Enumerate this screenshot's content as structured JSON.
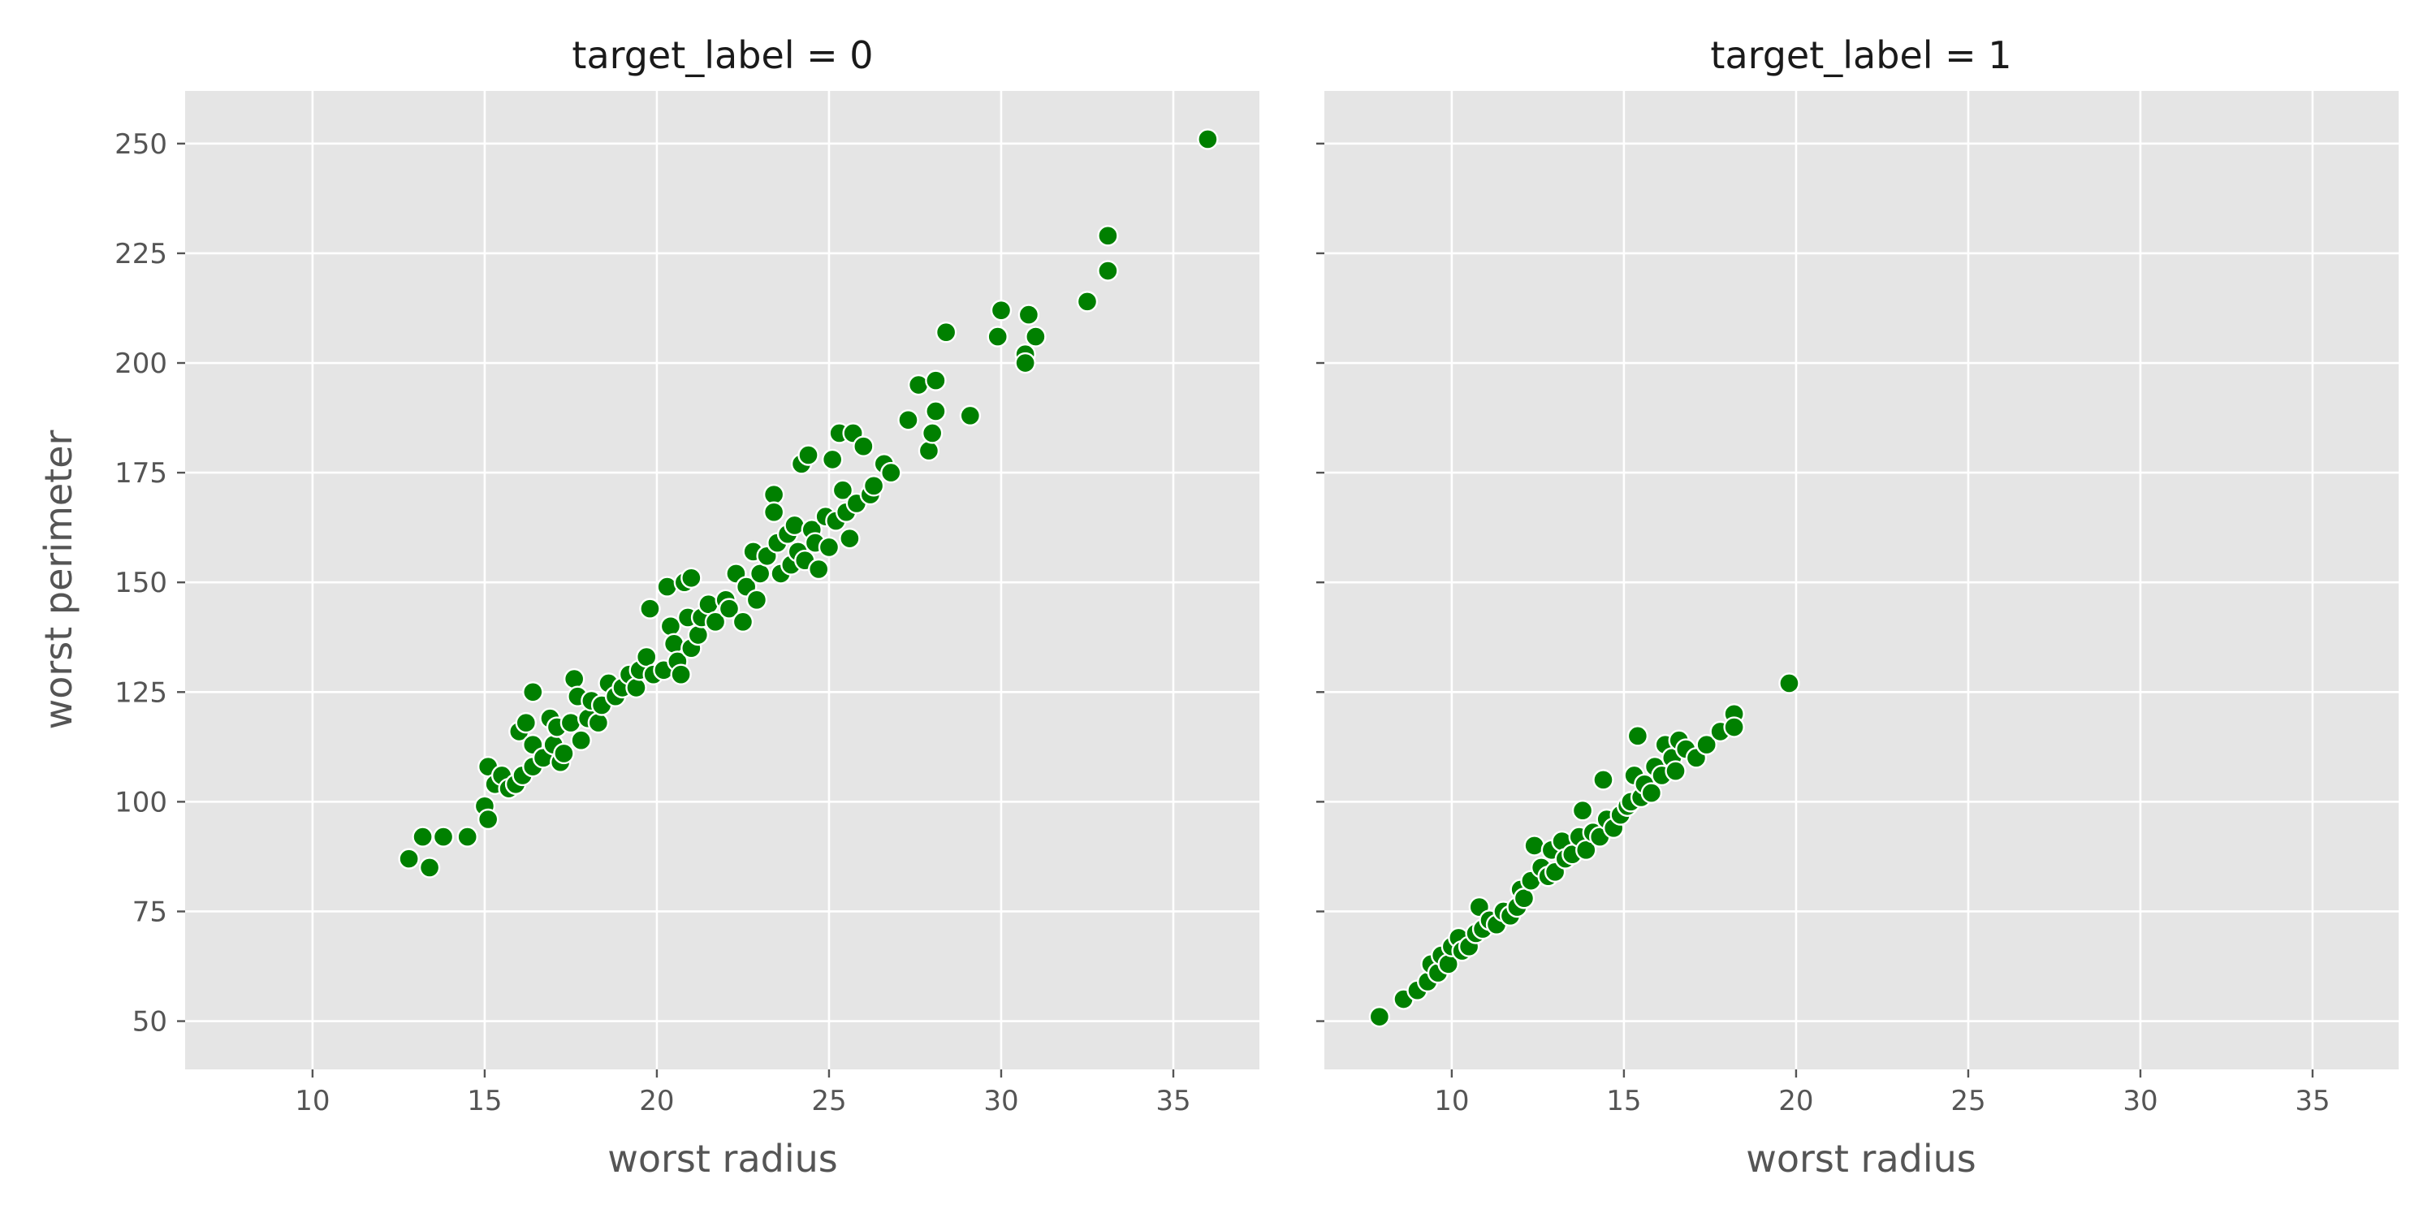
{
  "chart_data": {
    "type": "scatter",
    "point_color": "#008000",
    "background_color": "#e5e5e5",
    "grid": true,
    "shared_y_axis": true,
    "xlabel": "worst radius",
    "ylabel": "worst perimeter",
    "xlim": [
      6.3,
      37.5
    ],
    "ylim": [
      39,
      262
    ],
    "xticks": [
      10,
      15,
      20,
      25,
      30,
      35
    ],
    "yticks": [
      50,
      75,
      100,
      125,
      150,
      175,
      200,
      225,
      250
    ],
    "panels": [
      {
        "title": "target_label = 0",
        "points": [
          [
            12.8,
            87
          ],
          [
            13.2,
            92
          ],
          [
            13.4,
            85
          ],
          [
            13.8,
            92
          ],
          [
            14.5,
            92
          ],
          [
            15.0,
            99
          ],
          [
            15.1,
            96
          ],
          [
            15.1,
            108
          ],
          [
            15.3,
            104
          ],
          [
            15.5,
            106
          ],
          [
            15.7,
            103
          ],
          [
            15.9,
            104
          ],
          [
            16.0,
            116
          ],
          [
            16.2,
            118
          ],
          [
            16.1,
            106
          ],
          [
            16.4,
            125
          ],
          [
            16.4,
            113
          ],
          [
            16.4,
            108
          ],
          [
            16.7,
            110
          ],
          [
            16.9,
            119
          ],
          [
            17.0,
            113
          ],
          [
            17.1,
            117
          ],
          [
            17.2,
            109
          ],
          [
            17.3,
            111
          ],
          [
            17.5,
            118
          ],
          [
            17.6,
            128
          ],
          [
            17.7,
            124
          ],
          [
            17.8,
            114
          ],
          [
            18.0,
            119
          ],
          [
            18.1,
            123
          ],
          [
            18.3,
            118
          ],
          [
            18.4,
            122
          ],
          [
            18.6,
            127
          ],
          [
            18.8,
            124
          ],
          [
            19.0,
            126
          ],
          [
            19.2,
            129
          ],
          [
            19.4,
            126
          ],
          [
            19.5,
            130
          ],
          [
            19.7,
            133
          ],
          [
            19.8,
            144
          ],
          [
            19.9,
            129
          ],
          [
            20.2,
            130
          ],
          [
            20.3,
            149
          ],
          [
            20.4,
            140
          ],
          [
            20.5,
            136
          ],
          [
            20.6,
            132
          ],
          [
            20.7,
            129
          ],
          [
            20.8,
            150
          ],
          [
            20.9,
            142
          ],
          [
            21.0,
            151
          ],
          [
            21.0,
            135
          ],
          [
            21.2,
            138
          ],
          [
            21.3,
            142
          ],
          [
            21.5,
            145
          ],
          [
            21.7,
            141
          ],
          [
            22.0,
            146
          ],
          [
            22.1,
            144
          ],
          [
            22.3,
            152
          ],
          [
            22.5,
            141
          ],
          [
            22.6,
            149
          ],
          [
            22.8,
            157
          ],
          [
            22.9,
            146
          ],
          [
            23.0,
            152
          ],
          [
            23.2,
            156
          ],
          [
            23.4,
            170
          ],
          [
            23.4,
            166
          ],
          [
            23.5,
            159
          ],
          [
            23.6,
            152
          ],
          [
            23.8,
            161
          ],
          [
            23.9,
            154
          ],
          [
            24.0,
            163
          ],
          [
            24.1,
            157
          ],
          [
            24.2,
            177
          ],
          [
            24.3,
            155
          ],
          [
            24.4,
            179
          ],
          [
            24.5,
            162
          ],
          [
            24.6,
            159
          ],
          [
            24.7,
            153
          ],
          [
            24.9,
            165
          ],
          [
            25.0,
            158
          ],
          [
            25.1,
            178
          ],
          [
            25.2,
            164
          ],
          [
            25.3,
            184
          ],
          [
            25.4,
            171
          ],
          [
            25.5,
            166
          ],
          [
            25.6,
            160
          ],
          [
            25.7,
            184
          ],
          [
            25.8,
            168
          ],
          [
            26.0,
            181
          ],
          [
            26.2,
            170
          ],
          [
            26.3,
            172
          ],
          [
            26.6,
            177
          ],
          [
            26.8,
            175
          ],
          [
            27.3,
            187
          ],
          [
            27.6,
            195
          ],
          [
            27.9,
            180
          ],
          [
            28.0,
            184
          ],
          [
            28.1,
            189
          ],
          [
            28.1,
            196
          ],
          [
            28.4,
            207
          ],
          [
            29.1,
            188
          ],
          [
            29.9,
            206
          ],
          [
            30.0,
            212
          ],
          [
            30.7,
            202
          ],
          [
            30.7,
            200
          ],
          [
            30.8,
            211
          ],
          [
            31.0,
            206
          ],
          [
            32.5,
            214
          ],
          [
            33.1,
            229
          ],
          [
            33.1,
            221
          ],
          [
            36.0,
            251
          ]
        ]
      },
      {
        "title": "target_label = 1",
        "points": [
          [
            7.9,
            51
          ],
          [
            8.6,
            55
          ],
          [
            9.0,
            57
          ],
          [
            9.3,
            59
          ],
          [
            9.4,
            63
          ],
          [
            9.6,
            61
          ],
          [
            9.7,
            65
          ],
          [
            9.9,
            63
          ],
          [
            10.0,
            67
          ],
          [
            10.2,
            69
          ],
          [
            10.3,
            66
          ],
          [
            10.5,
            67
          ],
          [
            10.7,
            70
          ],
          [
            10.8,
            76
          ],
          [
            10.9,
            71
          ],
          [
            11.1,
            73
          ],
          [
            11.3,
            72
          ],
          [
            11.5,
            75
          ],
          [
            11.7,
            74
          ],
          [
            11.9,
            76
          ],
          [
            12.0,
            80
          ],
          [
            12.1,
            78
          ],
          [
            12.3,
            82
          ],
          [
            12.4,
            90
          ],
          [
            12.6,
            85
          ],
          [
            12.8,
            83
          ],
          [
            12.9,
            89
          ],
          [
            13.0,
            84
          ],
          [
            13.2,
            91
          ],
          [
            13.3,
            87
          ],
          [
            13.5,
            88
          ],
          [
            13.7,
            92
          ],
          [
            13.8,
            98
          ],
          [
            13.9,
            89
          ],
          [
            14.1,
            93
          ],
          [
            14.3,
            92
          ],
          [
            14.4,
            105
          ],
          [
            14.5,
            96
          ],
          [
            14.7,
            94
          ],
          [
            14.9,
            97
          ],
          [
            15.1,
            99
          ],
          [
            15.2,
            100
          ],
          [
            15.3,
            106
          ],
          [
            15.4,
            115
          ],
          [
            15.5,
            101
          ],
          [
            15.6,
            104
          ],
          [
            15.8,
            102
          ],
          [
            15.9,
            108
          ],
          [
            16.1,
            106
          ],
          [
            16.2,
            113
          ],
          [
            16.4,
            110
          ],
          [
            16.5,
            107
          ],
          [
            16.6,
            114
          ],
          [
            16.8,
            112
          ],
          [
            17.1,
            110
          ],
          [
            17.4,
            113
          ],
          [
            17.8,
            116
          ],
          [
            18.2,
            120
          ],
          [
            18.2,
            117
          ],
          [
            19.8,
            127
          ]
        ]
      }
    ]
  }
}
